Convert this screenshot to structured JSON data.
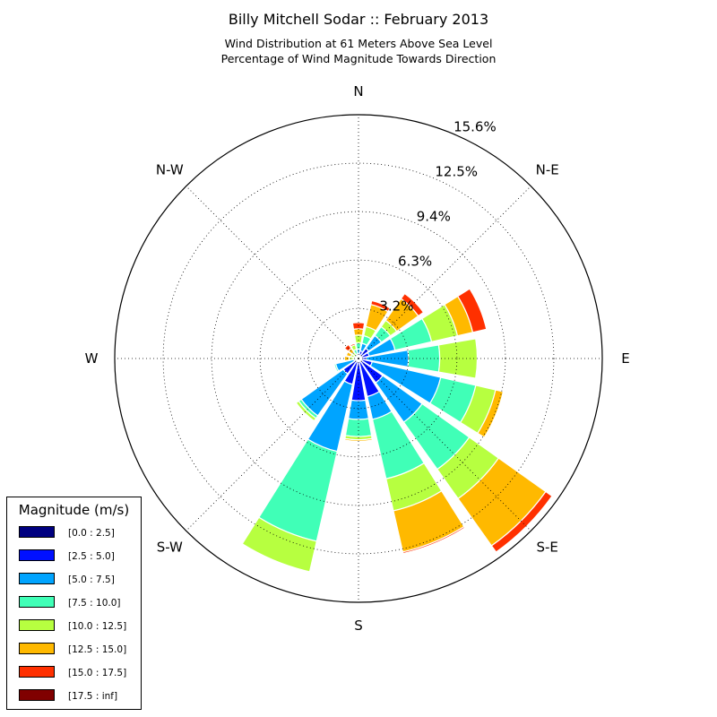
{
  "title": "Billy Mitchell Sodar :: February 2013",
  "subtitle_line1": "Wind Distribution at 61 Meters Above Sea Level",
  "subtitle_line2": "Percentage of Wind Magnitude Towards Direction",
  "directions": [
    "N",
    "N-E",
    "E",
    "S-E",
    "S",
    "S-W",
    "W",
    "N-W"
  ],
  "ring_labels": [
    "3.2%",
    "6.3%",
    "9.4%",
    "12.5%",
    "15.6%"
  ],
  "legend": {
    "title": "Magnitude (m/s)",
    "items": [
      {
        "label": "[0.0 : 2.5]",
        "color": "#000080"
      },
      {
        "label": "[2.5 : 5.0]",
        "color": "#0010ff"
      },
      {
        "label": "[5.0 : 7.5]",
        "color": "#00a4ff"
      },
      {
        "label": "[7.5 : 10.0]",
        "color": "#40ffb7"
      },
      {
        "label": "[10.0 : 12.5]",
        "color": "#b7ff40"
      },
      {
        "label": "[12.5 : 15.0]",
        "color": "#ffb900"
      },
      {
        "label": "[15.0 : 17.5]",
        "color": "#ff3000"
      },
      {
        "label": "[17.5 : inf]",
        "color": "#800000"
      }
    ]
  },
  "chart_data": {
    "type": "polar-stacked-bar",
    "unit": "%",
    "radial_ticks": [
      3.2,
      6.3,
      9.4,
      12.5,
      15.6
    ],
    "radial_max": 15.6,
    "grid": true,
    "legend_position": "bottom-left",
    "angles_deg": [
      0,
      22.5,
      45,
      67.5,
      90,
      112.5,
      135,
      157.5,
      180,
      202.5,
      225,
      247.5,
      270,
      292.5,
      315,
      337.5
    ],
    "segments": [
      "[0.0 : 2.5]",
      "[2.5 : 5.0]",
      "[5.0 : 7.5]",
      "[7.5 : 10.0]",
      "[10.0 : 12.5]",
      "[12.5 : 15.0]",
      "[15.0 : 17.5]",
      "[17.5 : inf]"
    ],
    "cumulative_values": [
      [
        0.1,
        0.3,
        0.6,
        1.0,
        1.5,
        1.9,
        2.3,
        2.3
      ],
      [
        0.1,
        0.5,
        1.0,
        1.5,
        2.1,
        3.55,
        3.8,
        3.8
      ],
      [
        0.1,
        0.8,
        1.8,
        2.5,
        3.0,
        4.7,
        5.1,
        5.1
      ],
      [
        0.1,
        0.7,
        2.4,
        4.8,
        6.5,
        7.5,
        8.4,
        8.4
      ],
      [
        0.1,
        0.5,
        3.2,
        5.2,
        7.6,
        7.6,
        7.6,
        7.6
      ],
      [
        0.1,
        0.9,
        5.4,
        7.7,
        9.0,
        9.5,
        9.5,
        9.5
      ],
      [
        0.15,
        1.9,
        5.0,
        8.7,
        11.0,
        14.7,
        15.2,
        15.2
      ],
      [
        0.15,
        2.5,
        4.0,
        7.9,
        10.0,
        12.7,
        12.8,
        12.8
      ],
      [
        0.1,
        2.7,
        3.9,
        5.0,
        5.2,
        5.3,
        5.3,
        5.3
      ],
      [
        0.1,
        1.7,
        6.1,
        12.0,
        14.0,
        14.0,
        14.0,
        14.0
      ],
      [
        0.1,
        1.2,
        4.5,
        4.7,
        4.9,
        4.9,
        4.9,
        4.9
      ],
      [
        0.1,
        0.3,
        1.5,
        1.6,
        1.6,
        1.6,
        1.6,
        1.6
      ],
      [
        0.05,
        0.1,
        0.1,
        0.3,
        0.6,
        0.9,
        0.9,
        0.9
      ],
      [
        0.05,
        0.1,
        0.1,
        0.3,
        0.5,
        0.8,
        0.8,
        0.8
      ],
      [
        0.05,
        0.1,
        0.1,
        0.1,
        0.5,
        0.8,
        1.1,
        1.1
      ],
      [
        0.05,
        0.1,
        0.3,
        0.6,
        0.9,
        0.9,
        1.0,
        1.0
      ]
    ]
  }
}
